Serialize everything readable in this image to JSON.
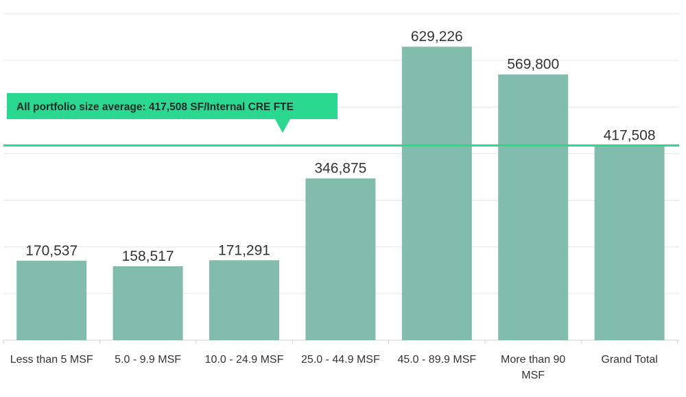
{
  "chart_data": {
    "type": "bar",
    "categories": [
      [
        "Less than 5 MSF"
      ],
      [
        "5.0 - 9.9 MSF"
      ],
      [
        "10.0 - 24.9 MSF"
      ],
      [
        "25.0 - 44.9 MSF"
      ],
      [
        "45.0 - 89.9 MSF"
      ],
      [
        "More than 90",
        "MSF"
      ],
      [
        "Grand Total"
      ]
    ],
    "values": [
      170537,
      158517,
      171291,
      346875,
      629226,
      569800,
      417508
    ],
    "value_labels": [
      "170,537",
      "158,517",
      "171,291",
      "346,875",
      "629,226",
      "569,800",
      "417,508"
    ],
    "ylim": [
      0,
      700000
    ],
    "gridline_step": 100000,
    "grid": true,
    "reference_line": {
      "value": 417508,
      "label": "All portfolio size average: 417,508 SF/Internal CRE FTE"
    },
    "colors": {
      "bar": "#82bcad",
      "reference_line": "#2bd890",
      "callout": "#2bd890",
      "text": "#333333",
      "grid": "#e6e6e6"
    }
  }
}
